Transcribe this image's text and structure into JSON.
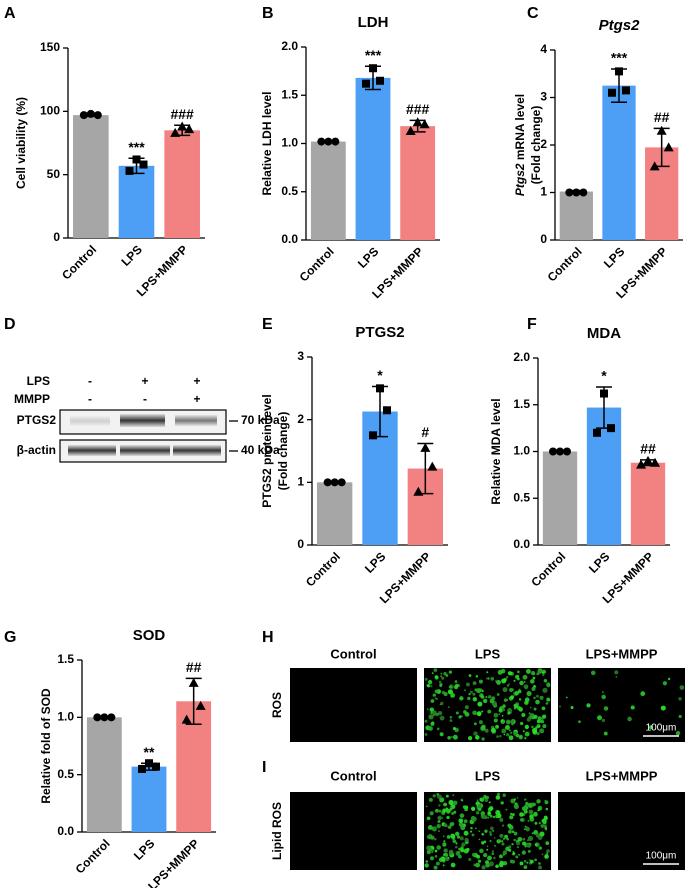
{
  "chart_data": [
    {
      "type": "bar",
      "panel_label": "A",
      "ylabel": [
        "Cell viability (%)"
      ],
      "categories": [
        "Control",
        "LPS",
        "LPS+MMPP"
      ],
      "colors": [
        "#a6a6a6",
        "#4d9ff5",
        "#f28282"
      ],
      "values": [
        97,
        57,
        85
      ],
      "errors": [
        1,
        6,
        4
      ],
      "points": [
        [
          97,
          98,
          97
        ],
        [
          53,
          62,
          58
        ],
        [
          83,
          88,
          86
        ]
      ],
      "annotations": [
        null,
        "***",
        "###"
      ],
      "ylim": [
        0,
        150
      ],
      "yticks": [
        0,
        50,
        100,
        150
      ]
    },
    {
      "type": "bar",
      "panel_label": "B",
      "title": "LDH",
      "ylabel": [
        "Relative LDH level"
      ],
      "categories": [
        "Control",
        "LPS",
        "LPS+MMPP"
      ],
      "colors": [
        "#a6a6a6",
        "#4d9ff5",
        "#f28282"
      ],
      "values": [
        1.02,
        1.68,
        1.18
      ],
      "errors": [
        0.01,
        0.12,
        0.06
      ],
      "points": [
        [
          1.02,
          1.02,
          1.02
        ],
        [
          1.62,
          1.78,
          1.65
        ],
        [
          1.13,
          1.22,
          1.2
        ]
      ],
      "annotations": [
        null,
        "***",
        "###"
      ],
      "ylim": [
        0,
        2
      ],
      "yticks": [
        {
          "value": 0,
          "label": "0.0"
        },
        0.5,
        {
          "value": 1,
          "label": "1.0"
        },
        1.5,
        {
          "value": 2,
          "label": "2.0"
        }
      ]
    },
    {
      "type": "bar",
      "panel_label": "C",
      "title": "Ptgs2",
      "title_italic": true,
      "ylabel": [
        [
          {
            "text": "Ptgs2",
            "italic": true
          },
          {
            "text": " mRNA level"
          }
        ],
        "(Fold change)"
      ],
      "categories": [
        "Control",
        "LPS",
        "LPS+MMPP"
      ],
      "colors": [
        "#a6a6a6",
        "#4d9ff5",
        "#f28282"
      ],
      "values": [
        1.02,
        3.25,
        1.95
      ],
      "errors": [
        0.02,
        0.35,
        0.4
      ],
      "points": [
        [
          1,
          1,
          1
        ],
        [
          3.1,
          3.55,
          3.15
        ],
        [
          1.55,
          2.3,
          1.95
        ]
      ],
      "annotations": [
        null,
        "***",
        "##"
      ],
      "ylim": [
        0,
        4
      ],
      "yticks": [
        0,
        1,
        2,
        3,
        4
      ]
    },
    {
      "type": "bar",
      "panel_label": "E",
      "title": "PTGS2",
      "ylabel": [
        "PTGS2 protein level",
        "(Fold change)"
      ],
      "categories": [
        "Control",
        "LPS",
        "LPS+MMPP"
      ],
      "colors": [
        "#a6a6a6",
        "#4d9ff5",
        "#f28282"
      ],
      "values": [
        1.0,
        2.13,
        1.22
      ],
      "errors": [
        0,
        0.4,
        0.4
      ],
      "points": [
        [
          1,
          1,
          1
        ],
        [
          1.75,
          2.5,
          2.15
        ],
        [
          0.85,
          1.55,
          1.25
        ]
      ],
      "annotations": [
        null,
        "*",
        "#"
      ],
      "ylim": [
        0,
        3
      ],
      "yticks": [
        0,
        1,
        2,
        3
      ]
    },
    {
      "type": "bar",
      "panel_label": "F",
      "title": "MDA",
      "ylabel": [
        "Relative MDA level"
      ],
      "categories": [
        "Control",
        "LPS",
        "LPS+MMPP"
      ],
      "colors": [
        "#a6a6a6",
        "#4d9ff5",
        "#f28282"
      ],
      "values": [
        1.0,
        1.47,
        0.88
      ],
      "errors": [
        0,
        0.22,
        0.03
      ],
      "points": [
        [
          1,
          1,
          1
        ],
        [
          1.2,
          1.62,
          1.25
        ],
        [
          0.86,
          0.9,
          0.88
        ]
      ],
      "annotations": [
        null,
        "*",
        "##"
      ],
      "ylim": [
        0,
        2
      ],
      "yticks": [
        {
          "value": 0,
          "label": "0.0"
        },
        0.5,
        {
          "value": 1,
          "label": "1.0"
        },
        1.5,
        {
          "value": 2,
          "label": "2.0"
        }
      ]
    },
    {
      "type": "bar",
      "panel_label": "G",
      "title": "SOD",
      "ylabel": [
        "Relative fold of SOD"
      ],
      "categories": [
        "Control",
        "LPS",
        "LPS+MMPP"
      ],
      "colors": [
        "#a6a6a6",
        "#4d9ff5",
        "#f28282"
      ],
      "values": [
        1.0,
        0.57,
        1.14
      ],
      "errors": [
        0,
        0.03,
        0.2
      ],
      "points": [
        [
          1,
          1,
          1
        ],
        [
          0.55,
          0.6,
          0.57
        ],
        [
          0.98,
          1.3,
          1.1
        ]
      ],
      "annotations": [
        null,
        "**",
        "##"
      ],
      "ylim": [
        0,
        1.5
      ],
      "yticks": [
        {
          "value": 0,
          "label": "0.0"
        },
        0.5,
        {
          "value": 1,
          "label": "1.0"
        },
        1.5
      ]
    }
  ],
  "blot": {
    "panel_label": "D",
    "treatments": [
      {
        "name": "LPS",
        "signs": [
          "-",
          "+",
          "+"
        ]
      },
      {
        "name": "MMPP",
        "signs": [
          "-",
          "-",
          "+"
        ]
      }
    ],
    "bands": [
      {
        "name": "PTGS2",
        "marker": "70 kDa"
      },
      {
        "name": "β-actin",
        "marker": "40 kDa"
      }
    ]
  },
  "micrographs": [
    {
      "panel_label": "H",
      "columns": [
        "Control",
        "LPS",
        "LPS+MMPP"
      ],
      "row_label": "ROS",
      "scale_bar": "100μm"
    },
    {
      "panel_label": "I",
      "columns": [
        "Control",
        "LPS",
        "LPS+MMPP"
      ],
      "row_label": "Lipid ROS",
      "scale_bar": "100μm"
    }
  ]
}
